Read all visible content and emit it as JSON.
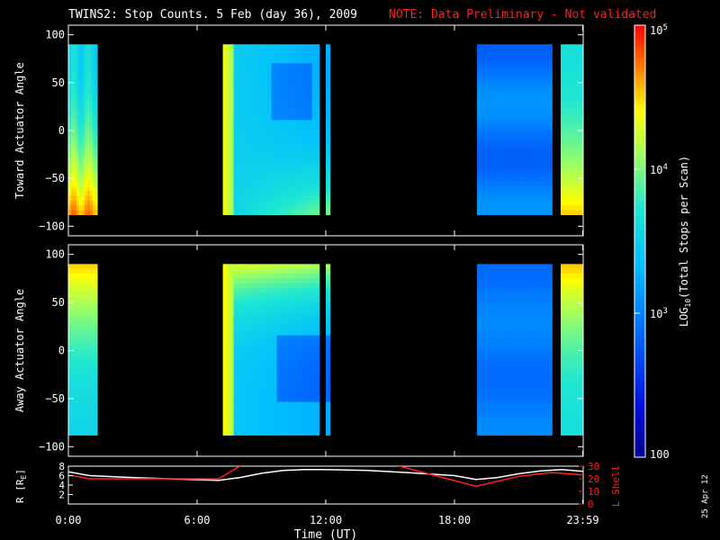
{
  "header": {
    "title": "TWINS2: Stop Counts.  5 Feb (day  36), 2009",
    "note": "NOTE: Data Preliminary - Not validated",
    "note_color": "#ff2020"
  },
  "footer": {
    "xlabel": "Time (UT)",
    "date_stamp": "25 Apr 12"
  },
  "colorbar": {
    "label": "LOG10(Total Stops per Scan)",
    "label_prefix": "LOG",
    "label_sub": "10",
    "label_suffix": "(Total Stops per Scan)",
    "ticks": [
      {
        "value": 100,
        "text": "100",
        "base": "",
        "exp": ""
      },
      {
        "value": 1000,
        "text": "",
        "base": "10",
        "exp": "3"
      },
      {
        "value": 10000,
        "text": "",
        "base": "10",
        "exp": "4"
      },
      {
        "value": 100000,
        "text": "",
        "base": "10",
        "exp": "5"
      }
    ],
    "range": [
      100,
      100000
    ],
    "scale": "log"
  },
  "chart_data": [
    {
      "type": "heatmap",
      "panel": "toward",
      "ylabel": "Toward Actuator Angle",
      "x_ticks": [
        "0:00",
        "6:00",
        "12:00",
        "18:00",
        "23:59"
      ],
      "x_tick_hours": [
        0,
        6,
        12,
        18,
        23.98
      ],
      "xlim": [
        0,
        24
      ],
      "y_ticks": [
        100,
        50,
        0,
        -50,
        -100
      ],
      "ylim": [
        -110,
        110
      ],
      "data_angle_range": [
        -88,
        90
      ],
      "coverage_hours": [
        [
          0.0,
          1.35
        ],
        [
          7.2,
          11.7
        ],
        [
          12.0,
          12.2
        ],
        [
          19.05,
          22.55
        ],
        [
          22.95,
          24.0
        ]
      ],
      "background": "#000000"
    },
    {
      "type": "heatmap",
      "panel": "away",
      "ylabel": "Away Actuator Angle",
      "x_ticks": [
        "0:00",
        "6:00",
        "12:00",
        "18:00",
        "23:59"
      ],
      "x_tick_hours": [
        0,
        6,
        12,
        18,
        23.98
      ],
      "xlim": [
        0,
        24
      ],
      "y_ticks": [
        100,
        50,
        0,
        -50,
        -100
      ],
      "ylim": [
        -110,
        110
      ],
      "data_angle_range": [
        -88,
        90
      ],
      "coverage_hours": [
        [
          0.0,
          1.35
        ],
        [
          7.2,
          11.7
        ],
        [
          12.0,
          12.2
        ],
        [
          19.05,
          22.55
        ],
        [
          22.95,
          24.0
        ]
      ],
      "background": "#000000"
    },
    {
      "type": "line",
      "panel": "ephemeris",
      "ylabel_left": "R [RE]",
      "ylabel_left_main": "R [R",
      "ylabel_left_sub": "E",
      "ylabel_left_end": "]",
      "ylabel_right": "L Shell",
      "x_ticks": [
        "0:00",
        "6:00",
        "12:00",
        "18:00",
        "23:59"
      ],
      "y_left_ticks": [
        8,
        6,
        4,
        2
      ],
      "y_left_lim": [
        0,
        8
      ],
      "y_right_ticks": [
        30,
        20,
        10,
        0
      ],
      "y_right_lim": [
        0,
        30
      ],
      "series": [
        {
          "name": "R [RE]",
          "axis": "left",
          "color": "#ffffff",
          "x": [
            0,
            1,
            3,
            5,
            7,
            8,
            9,
            10,
            11,
            12,
            14,
            16,
            18,
            19,
            20,
            21,
            22,
            23,
            24
          ],
          "y": [
            6.8,
            6.0,
            5.6,
            5.3,
            5.0,
            5.6,
            6.5,
            7.1,
            7.3,
            7.3,
            7.1,
            6.6,
            6.0,
            5.2,
            5.6,
            6.4,
            7.0,
            7.3,
            6.9
          ]
        },
        {
          "name": "L Shell",
          "axis": "right",
          "color": "#ff2020",
          "segments": [
            {
              "x": [
                0,
                1,
                4,
                7,
                8.2
              ],
              "y": [
                23,
                20,
                20,
                20,
                32
              ]
            },
            {
              "x": [
                15.0,
                19.0,
                21.0,
                22.5,
                24
              ],
              "y": [
                32,
                14,
                22,
                25,
                23
              ]
            }
          ]
        }
      ]
    }
  ]
}
